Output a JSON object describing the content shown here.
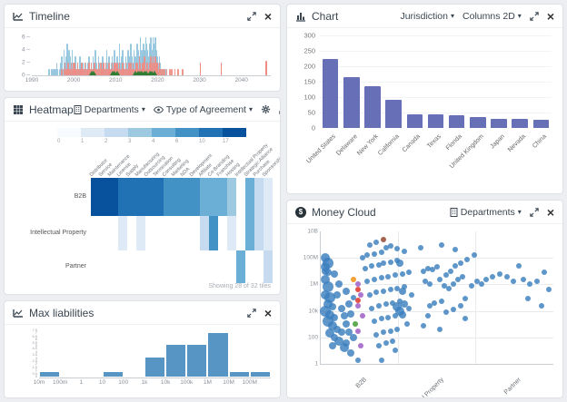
{
  "panels": {
    "timeline": {
      "title": "Timeline"
    },
    "chart": {
      "title": "Chart",
      "dropdown1": "Jurisdiction",
      "dropdown2": "Columns 2D"
    },
    "heatmap": {
      "title": "Heatmap",
      "dropdown1": "Departments",
      "dropdown2": "Type of Agreement",
      "status": "Showing 28 of 32 tiles"
    },
    "money": {
      "title": "Money Cloud",
      "dropdown1": "Departments",
      "currency_icon": "$"
    },
    "liab": {
      "title": "Max liabilities"
    }
  },
  "chart_data": [
    {
      "id": "timeline",
      "type": "bar",
      "title": "Timeline",
      "x_range": [
        1990,
        2047
      ],
      "y_max": 6.6,
      "x_ticks": [
        1990,
        2000,
        2010,
        2020,
        2030,
        2040
      ],
      "y_ticks": [
        0,
        2,
        4,
        6
      ],
      "series": [
        {
          "name": "agreements",
          "color": "#8fc3dc",
          "start": 1994,
          "step": 0.25,
          "values": [
            1,
            0,
            1,
            1,
            0,
            1,
            1,
            2,
            1,
            0,
            1,
            2,
            3,
            1,
            4,
            2,
            3,
            5,
            2,
            4,
            3,
            2,
            4,
            1,
            2,
            3,
            1,
            2,
            1,
            3,
            2,
            1,
            2,
            1,
            1,
            2,
            1,
            2,
            3,
            1,
            2,
            1,
            3,
            2,
            4,
            2,
            1,
            3,
            2,
            1,
            2,
            3,
            2,
            1,
            2,
            4,
            2,
            3,
            1,
            2,
            3,
            2,
            4,
            2,
            1,
            3,
            2,
            5,
            2,
            3,
            4,
            2,
            1,
            3,
            2,
            4,
            3,
            2,
            5,
            3,
            2,
            4,
            3,
            2,
            5,
            4,
            3,
            6,
            4,
            3,
            5,
            4,
            6,
            5,
            4,
            3,
            5,
            6,
            4,
            6,
            5,
            6,
            4,
            3,
            2,
            3,
            2,
            1,
            1,
            1,
            0,
            1
          ]
        },
        {
          "name": "expirations",
          "color": "#ee8c84",
          "start": 1997,
          "step": 0.25,
          "values": [
            1,
            0,
            1,
            2,
            1,
            1,
            2,
            1,
            1,
            2,
            1,
            2,
            2,
            1,
            1,
            2,
            1,
            1,
            1,
            2,
            1,
            1,
            2,
            1,
            1,
            1,
            2,
            1,
            2,
            1,
            1,
            2,
            1,
            1,
            1,
            2,
            1,
            2,
            1,
            1,
            2,
            1,
            2,
            1,
            1,
            2,
            1,
            1,
            2,
            1,
            2,
            2,
            1,
            2,
            1,
            2,
            1,
            1,
            2,
            1,
            1,
            2,
            1,
            1,
            2,
            1,
            2,
            1,
            2,
            1,
            1,
            2,
            2,
            1,
            3,
            2,
            1,
            2,
            2,
            3,
            1,
            2,
            2,
            1,
            2,
            3,
            2,
            3,
            2,
            3,
            2,
            2,
            1,
            2,
            1,
            1,
            1,
            0,
            1,
            0,
            1,
            0,
            0,
            1,
            0,
            1,
            0,
            0,
            1,
            0,
            0,
            1,
            0,
            0,
            0,
            1
          ]
        }
      ],
      "red_extras": [
        [
          2030,
          2
        ],
        [
          2035,
          2
        ],
        [
          2045.7,
          2.3
        ]
      ],
      "green_color": "#2f7d32",
      "green_markers": [
        2004.3,
        2004.8,
        2009.3,
        2009.8,
        2010.3,
        2014.8,
        2015.3,
        2015.8,
        2016.3,
        2016.8,
        2017.3,
        2018.2,
        2018.7,
        2019.2
      ]
    },
    {
      "id": "jurisdiction",
      "type": "bar",
      "categories": [
        "United States",
        "Delaware",
        "New York",
        "California",
        "Canada",
        "Texas",
        "Florida",
        "United Kingdom",
        "Japan",
        "Nevada",
        "China"
      ],
      "values": [
        225,
        165,
        135,
        90,
        43,
        43,
        40,
        35,
        30,
        30,
        27
      ],
      "bar_color": "#6770b6",
      "y_ticks": [
        300,
        250,
        200,
        150,
        100,
        50,
        0
      ],
      "y_max": 300,
      "grid": true
    },
    {
      "id": "heatmap",
      "type": "heatmap",
      "legend": {
        "labels": [
          "0",
          "1",
          "2",
          "3",
          "4",
          "6",
          "10",
          "17"
        ],
        "colors": [
          "#f7fbff",
          "#deebf7",
          "#c6dbef",
          "#9ecae1",
          "#6baed6",
          "#4292c6",
          "#2171b5",
          "#08519c"
        ]
      },
      "columns": [
        "Distributor",
        "Service",
        "Maintenance",
        "License",
        "Supply",
        "Manufacturing",
        "Outsourcing",
        "Termination",
        "Consulting",
        "Marketing",
        "NDA",
        "Development",
        "Affiliate",
        "Co-Branding",
        "Franchise",
        "Hosting",
        "Intellectual Property",
        "Strategic Alliance",
        "Purchase",
        "Sponsorship"
      ],
      "rows": [
        "B2B",
        "Intellectual Property",
        "Partner"
      ],
      "matrix": [
        [
          17,
          17,
          17,
          15,
          13,
          11,
          10,
          10,
          8,
          7,
          6,
          6,
          5,
          4,
          4,
          3,
          null,
          4,
          2,
          1
        ],
        [
          null,
          null,
          null,
          1,
          null,
          1,
          null,
          null,
          null,
          null,
          null,
          null,
          2,
          6,
          null,
          1,
          null,
          4,
          2,
          1
        ],
        [
          null,
          null,
          null,
          null,
          null,
          null,
          null,
          null,
          null,
          null,
          null,
          null,
          null,
          null,
          null,
          null,
          4,
          null,
          null,
          2
        ]
      ],
      "thresholds": [
        [
          17,
          "#08519c"
        ],
        [
          10,
          "#2171b5"
        ],
        [
          6,
          "#4292c6"
        ],
        [
          4,
          "#6baed6"
        ],
        [
          3,
          "#9ecae1"
        ],
        [
          2,
          "#c6dbef"
        ],
        [
          1,
          "#deebf7"
        ],
        [
          0,
          "#f7fbff"
        ]
      ]
    },
    {
      "id": "money_cloud",
      "type": "scatter",
      "y_ticks": [
        "10B",
        "100M",
        "1M",
        "10k",
        "100",
        "1"
      ],
      "x_categories": [
        "B2B",
        "Intellectual Property",
        "Partner"
      ],
      "point_color": "#3a7fbe",
      "points_pct": [
        [
          2,
          20,
          5
        ],
        [
          3,
          24,
          6
        ],
        [
          2,
          27,
          5
        ],
        [
          3,
          31,
          4
        ],
        [
          2,
          36,
          5
        ],
        [
          3,
          42,
          6
        ],
        [
          2,
          48,
          5
        ],
        [
          4,
          50,
          6
        ],
        [
          3,
          55,
          5
        ],
        [
          5,
          57,
          4
        ],
        [
          2,
          60,
          6
        ],
        [
          4,
          63,
          5
        ],
        [
          6,
          65,
          4
        ],
        [
          3,
          68,
          6
        ],
        [
          5,
          71,
          5
        ],
        [
          7,
          74,
          4
        ],
        [
          4,
          77,
          5
        ],
        [
          6,
          80,
          4
        ],
        [
          8,
          83,
          5
        ],
        [
          5,
          86,
          4
        ],
        [
          9,
          58,
          4
        ],
        [
          10,
          64,
          4
        ],
        [
          11,
          70,
          4
        ],
        [
          9,
          76,
          4
        ],
        [
          12,
          55,
          4
        ],
        [
          13,
          62,
          4
        ],
        [
          7,
          48,
          4
        ],
        [
          8,
          40,
          4
        ],
        [
          6,
          32,
          4
        ],
        [
          10,
          88,
          5
        ],
        [
          13,
          92,
          4
        ],
        [
          16,
          97,
          3
        ],
        [
          2,
          30,
          4
        ],
        [
          11,
          45,
          4
        ],
        [
          14,
          50,
          3
        ],
        [
          12,
          76,
          4
        ],
        [
          14,
          80,
          4
        ],
        [
          11,
          84,
          4
        ],
        [
          18,
          20,
          3
        ],
        [
          20,
          18,
          3
        ],
        [
          23,
          17,
          3
        ],
        [
          26,
          16,
          3
        ],
        [
          21,
          10,
          3
        ],
        [
          24,
          8,
          3
        ],
        [
          28,
          12,
          3
        ],
        [
          30,
          11,
          3
        ],
        [
          33,
          13,
          3
        ],
        [
          36,
          15,
          3
        ],
        [
          19,
          28,
          3
        ],
        [
          22,
          26,
          3
        ],
        [
          25,
          25,
          3
        ],
        [
          27,
          24,
          3
        ],
        [
          30,
          23,
          3
        ],
        [
          33,
          22,
          3
        ],
        [
          20,
          38,
          3
        ],
        [
          23,
          36,
          3
        ],
        [
          26,
          35,
          3
        ],
        [
          29,
          34,
          3
        ],
        [
          32,
          33,
          3
        ],
        [
          35,
          32,
          3
        ],
        [
          38,
          31,
          3
        ],
        [
          21,
          48,
          3
        ],
        [
          24,
          46,
          3
        ],
        [
          27,
          45,
          3
        ],
        [
          30,
          44,
          3
        ],
        [
          33,
          43,
          3
        ],
        [
          36,
          42,
          3
        ],
        [
          22,
          58,
          3
        ],
        [
          25,
          56,
          3
        ],
        [
          28,
          55,
          3
        ],
        [
          31,
          54,
          3
        ],
        [
          34,
          53,
          3
        ],
        [
          23,
          68,
          3
        ],
        [
          26,
          66,
          3
        ],
        [
          29,
          65,
          3
        ],
        [
          32,
          64,
          3
        ],
        [
          24,
          78,
          3
        ],
        [
          27,
          76,
          3
        ],
        [
          30,
          75,
          3
        ],
        [
          33,
          74,
          3
        ],
        [
          25,
          86,
          3
        ],
        [
          28,
          84,
          3
        ],
        [
          31,
          83,
          3
        ],
        [
          26,
          97,
          3
        ],
        [
          34,
          24,
          4
        ],
        [
          35,
          45,
          4
        ],
        [
          36,
          55,
          4
        ],
        [
          33,
          57,
          5
        ],
        [
          34,
          60,
          5
        ],
        [
          35,
          63,
          4
        ],
        [
          32,
          90,
          3
        ],
        [
          37,
          70,
          3
        ],
        [
          38,
          58,
          3
        ],
        [
          39,
          48,
          3
        ],
        [
          44,
          30,
          3
        ],
        [
          46,
          28,
          3
        ],
        [
          48,
          29,
          3
        ],
        [
          50,
          27,
          3
        ],
        [
          45,
          38,
          3
        ],
        [
          47,
          40,
          3
        ],
        [
          51,
          36,
          3
        ],
        [
          54,
          33,
          3
        ],
        [
          56,
          30,
          3
        ],
        [
          53,
          41,
          3
        ],
        [
          55,
          43,
          3
        ],
        [
          57,
          40,
          3
        ],
        [
          59,
          36,
          3
        ],
        [
          61,
          34,
          3
        ],
        [
          58,
          26,
          3
        ],
        [
          60,
          24,
          3
        ],
        [
          47,
          56,
          3
        ],
        [
          49,
          54,
          3
        ],
        [
          52,
          53,
          3
        ],
        [
          46,
          64,
          3
        ],
        [
          54,
          61,
          3
        ],
        [
          57,
          59,
          3
        ],
        [
          60,
          56,
          3
        ],
        [
          44,
          71,
          3
        ],
        [
          51,
          74,
          3
        ],
        [
          62,
          51,
          3
        ],
        [
          43,
          12,
          3
        ],
        [
          52,
          10,
          3
        ],
        [
          65,
          41,
          3
        ],
        [
          67,
          38,
          3
        ],
        [
          69,
          40,
          3
        ],
        [
          63,
          21,
          3
        ],
        [
          66,
          18,
          3
        ],
        [
          71,
          36,
          3
        ],
        [
          58,
          14,
          3
        ],
        [
          62,
          66,
          3
        ],
        [
          74,
          34,
          3
        ],
        [
          77,
          32,
          3
        ],
        [
          80,
          34,
          3
        ],
        [
          83,
          38,
          3
        ],
        [
          87,
          36,
          3
        ],
        [
          90,
          40,
          3
        ],
        [
          93,
          38,
          3
        ],
        [
          96,
          31,
          3
        ],
        [
          89,
          51,
          3
        ],
        [
          95,
          56,
          3
        ],
        [
          85,
          26,
          3
        ],
        [
          98,
          44,
          3
        ]
      ],
      "special_points": [
        {
          "color": "#f39c2c",
          "x": 14,
          "y": 36,
          "r": 3
        },
        {
          "color": "#e04a3f",
          "x": 16,
          "y": 44,
          "r": 3
        },
        {
          "color": "#e04a3f",
          "x": 16,
          "y": 52,
          "r": 3
        },
        {
          "color": "#a96fc9",
          "x": 16,
          "y": 40,
          "r": 3
        },
        {
          "color": "#a96fc9",
          "x": 17,
          "y": 48,
          "r": 3
        },
        {
          "color": "#a96fc9",
          "x": 16,
          "y": 56,
          "r": 3
        },
        {
          "color": "#a96fc9",
          "x": 18,
          "y": 64,
          "r": 3
        },
        {
          "color": "#a96fc9",
          "x": 16,
          "y": 75,
          "r": 3
        },
        {
          "color": "#a96fc9",
          "x": 17,
          "y": 86,
          "r": 3
        },
        {
          "color": "#55a546",
          "x": 15,
          "y": 70,
          "r": 3
        },
        {
          "color": "#9e5b46",
          "x": 27,
          "y": 6,
          "r": 3
        }
      ]
    },
    {
      "id": "max_liabilities",
      "type": "histogram",
      "bin_labels": [
        "10m",
        "100m",
        "1",
        "10",
        "100",
        "1k",
        "10k",
        "100k",
        "1M",
        "10M",
        "100M"
      ],
      "values": [
        1,
        0,
        0,
        1,
        0,
        3.5,
        5.5,
        5.5,
        7.5,
        1,
        1
      ],
      "y_max": 7.8,
      "y_axis_labels": [
        "7.5",
        "7",
        "6.5",
        "6",
        "5.5",
        "5",
        "4.5",
        "4",
        "3.5",
        "3",
        "2.5",
        "2",
        "1.5",
        "1",
        "0.5",
        "0"
      ],
      "bar_color": "#5795c5"
    }
  ]
}
